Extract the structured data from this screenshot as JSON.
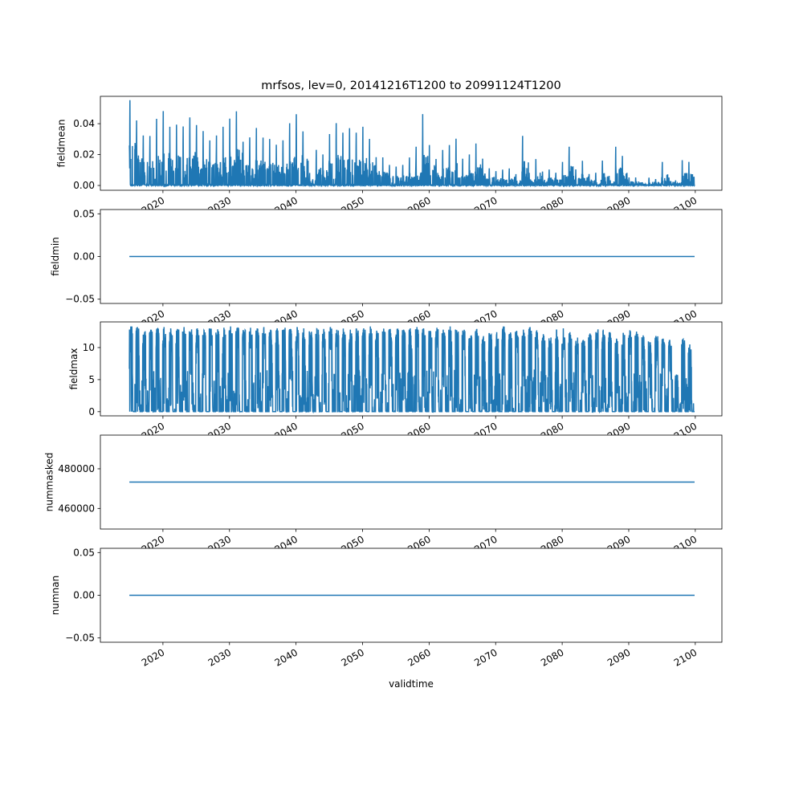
{
  "chart_data": {
    "type": "line",
    "title": "mrfsos, lev=0, 20141216T1200 to 20991124T1200",
    "xlabel": "validtime",
    "xlim": [
      2010.6,
      2104.0
    ],
    "x_ticks": [
      "2020",
      "2030",
      "2040",
      "2050",
      "2060",
      "2070",
      "2080",
      "2090",
      "2100"
    ],
    "x_tick_values": [
      2020,
      2030,
      2040,
      2050,
      2060,
      2070,
      2080,
      2090,
      2100
    ],
    "x_range": [
      2014.96,
      2099.9
    ],
    "line_color": "#1f77b4",
    "grid": false,
    "panels": [
      {
        "ylabel": "fieldmean",
        "kind": "seasonal-spikes",
        "ylim": [
          -0.0031,
          0.0577
        ],
        "y_ticks": [
          "0.00",
          "0.02",
          "0.04"
        ],
        "y_tick_values": [
          0,
          0.02,
          0.04
        ],
        "annual_peak_years_start": 2015,
        "annual_peaks": [
          0.055,
          0.042,
          0.032,
          0.032,
          0.043,
          0.048,
          0.038,
          0.039,
          0.038,
          0.044,
          0.039,
          0.035,
          0.029,
          0.032,
          0.038,
          0.043,
          0.048,
          0.028,
          0.031,
          0.037,
          0.031,
          0.03,
          0.026,
          0.029,
          0.04,
          0.046,
          0.035,
          0.008,
          0.023,
          0.02,
          0.033,
          0.04,
          0.034,
          0.037,
          0.034,
          0.038,
          0.03,
          0.018,
          0.018,
          0.013,
          0.012,
          0.013,
          0.018,
          0.025,
          0.046,
          0.026,
          0.017,
          0.023,
          0.026,
          0.03,
          0.017,
          0.02,
          0.027,
          0.017,
          0.011,
          0.009,
          0.01,
          0.011,
          0.007,
          0.032,
          0.008,
          0.017,
          0.009,
          0.01,
          0.008,
          0.015,
          0.025,
          0.01,
          0.016,
          0.007,
          0.008,
          0.016,
          0.006,
          0.025,
          0.019,
          0.005,
          0.005,
          0.002,
          0.005,
          0.004,
          0.015,
          0.005,
          0.003,
          0.016,
          0.015
        ]
      },
      {
        "ylabel": "fieldmin",
        "kind": "constant",
        "value": 0.0,
        "ylim": [
          -0.055,
          0.055
        ],
        "y_ticks": [
          "−0.05",
          "0.00",
          "0.05"
        ],
        "y_tick_values": [
          -0.05,
          0,
          0.05
        ]
      },
      {
        "ylabel": "fieldmax",
        "kind": "seasonal-plateau",
        "ylim": [
          -0.65,
          14.0
        ],
        "y_ticks": [
          "0",
          "5",
          "10"
        ],
        "y_tick_values": [
          0,
          5,
          10
        ],
        "annual_peak_years_start": 2015,
        "annual_peaks": [
          13.3,
          13.2,
          13.0,
          12.8,
          13.1,
          13.2,
          13.0,
          12.9,
          13.2,
          13.1,
          13.0,
          12.7,
          13.0,
          13.2,
          13.1,
          13.3,
          13.2,
          12.9,
          13.1,
          13.0,
          13.2,
          12.8,
          13.0,
          13.1,
          12.9,
          13.2,
          13.0,
          12.6,
          13.1,
          12.9,
          13.2,
          13.0,
          13.1,
          12.8,
          13.2,
          13.0,
          13.3,
          12.7,
          13.0,
          12.9,
          13.1,
          12.8,
          13.0,
          13.2,
          13.0,
          12.6,
          13.1,
          12.9,
          13.3,
          12.8,
          13.0,
          12.7,
          12.9,
          11.8,
          12.3,
          12.4,
          13.3,
          12.4,
          12.6,
          12.8,
          13.2,
          12.7,
          12.1,
          11.6,
          12.8,
          13.0,
          12.4,
          11.6,
          11.2,
          12.2,
          13.0,
          12.8,
          12.4,
          11.4,
          12.3,
          12.7,
          12.5,
          11.9,
          11.2,
          12.0,
          11.4,
          11.2,
          5.8,
          11.3,
          10.5
        ]
      },
      {
        "ylabel": "nummasked",
        "kind": "constant",
        "value": 473300,
        "ylim": [
          449600,
          497000
        ],
        "y_ticks": [
          "460000",
          "480000"
        ],
        "y_tick_values": [
          460000,
          480000
        ]
      },
      {
        "ylabel": "numnan",
        "kind": "constant",
        "value": 0,
        "ylim": [
          -0.055,
          0.055
        ],
        "y_ticks": [
          "−0.05",
          "0.00",
          "0.05"
        ],
        "y_tick_values": [
          -0.05,
          0,
          0.05
        ]
      }
    ]
  }
}
